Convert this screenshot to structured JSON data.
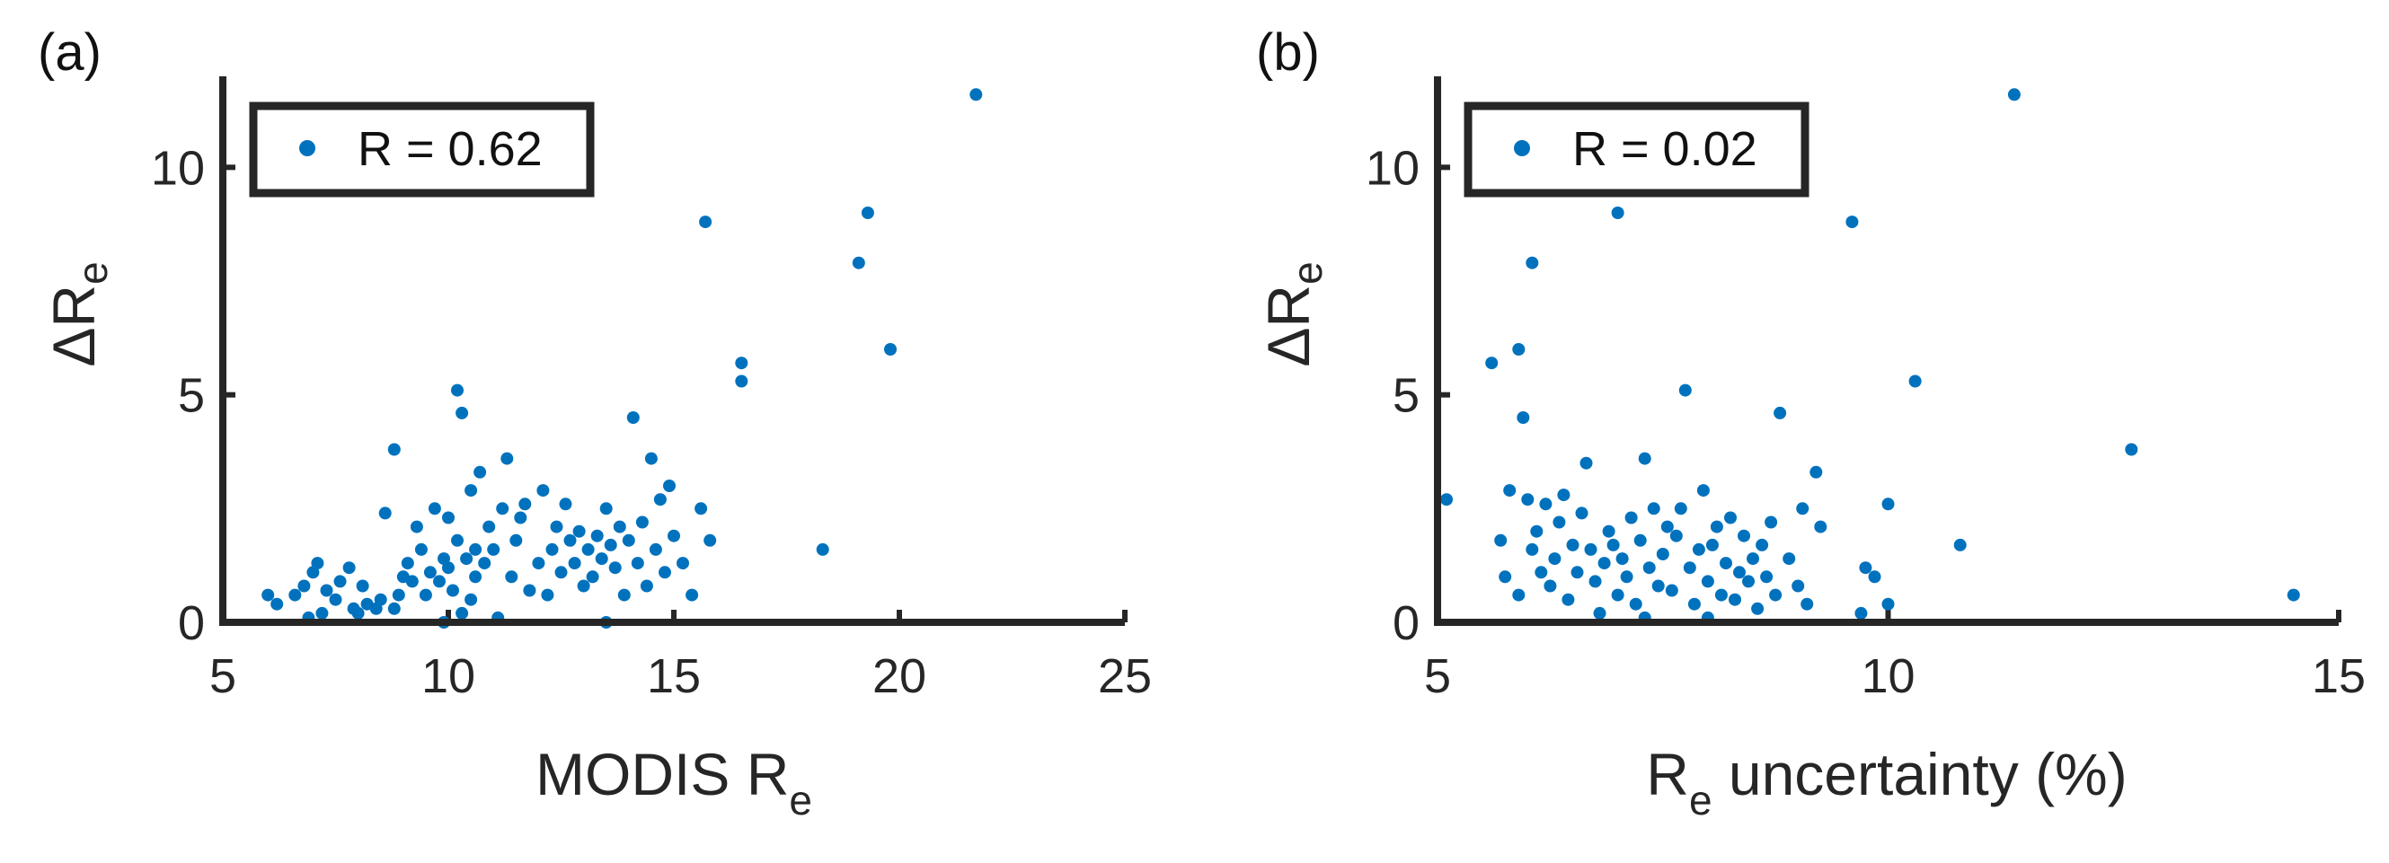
{
  "chart_data": [
    {
      "type": "scatter",
      "panel_label": "(a)",
      "color": "#0072BD",
      "ylabel_main": "ΔR",
      "ylabel_sub": "e",
      "xlabel_main": "MODIS R",
      "xlabel_sub": "e",
      "xlabel_suffix": "",
      "xlim": [
        5,
        25
      ],
      "ylim": [
        0,
        12
      ],
      "xticks": [
        "5",
        "10",
        "15",
        "20",
        "25"
      ],
      "yticks": [
        "0",
        "5",
        "10"
      ],
      "legend": "R = 0.62",
      "legend_position": "top-left",
      "grid": false,
      "points": [
        [
          6.0,
          0.6
        ],
        [
          6.2,
          0.4
        ],
        [
          6.6,
          0.6
        ],
        [
          6.8,
          0.8
        ],
        [
          6.9,
          0.1
        ],
        [
          7.0,
          1.1
        ],
        [
          7.1,
          1.3
        ],
        [
          7.2,
          0.2
        ],
        [
          7.3,
          0.7
        ],
        [
          7.5,
          0.5
        ],
        [
          7.6,
          0.9
        ],
        [
          7.8,
          1.2
        ],
        [
          7.9,
          0.3
        ],
        [
          8.0,
          0.2
        ],
        [
          8.1,
          0.8
        ],
        [
          8.2,
          0.4
        ],
        [
          8.4,
          0.3
        ],
        [
          8.5,
          0.5
        ],
        [
          8.6,
          2.4
        ],
        [
          8.8,
          0.3
        ],
        [
          8.8,
          3.8
        ],
        [
          8.9,
          0.6
        ],
        [
          9.0,
          1.0
        ],
        [
          9.1,
          1.3
        ],
        [
          9.2,
          0.9
        ],
        [
          9.3,
          2.1
        ],
        [
          9.4,
          1.6
        ],
        [
          9.5,
          0.6
        ],
        [
          9.6,
          1.1
        ],
        [
          9.7,
          2.5
        ],
        [
          9.8,
          0.9
        ],
        [
          9.9,
          1.4
        ],
        [
          9.9,
          0.0
        ],
        [
          10.0,
          1.2
        ],
        [
          10.0,
          2.3
        ],
        [
          10.1,
          0.7
        ],
        [
          10.2,
          1.8
        ],
        [
          10.2,
          5.1
        ],
        [
          10.3,
          4.6
        ],
        [
          10.3,
          0.2
        ],
        [
          10.4,
          1.4
        ],
        [
          10.5,
          2.9
        ],
        [
          10.5,
          0.5
        ],
        [
          10.6,
          1.6
        ],
        [
          10.6,
          1.0
        ],
        [
          10.7,
          3.3
        ],
        [
          10.8,
          1.3
        ],
        [
          10.9,
          2.1
        ],
        [
          11.0,
          1.6
        ],
        [
          11.1,
          0.1
        ],
        [
          11.2,
          2.5
        ],
        [
          11.3,
          3.6
        ],
        [
          11.4,
          1.0
        ],
        [
          11.5,
          1.8
        ],
        [
          11.6,
          2.3
        ],
        [
          11.7,
          2.6
        ],
        [
          11.8,
          0.7
        ],
        [
          12.0,
          1.3
        ],
        [
          12.1,
          2.9
        ],
        [
          12.2,
          0.6
        ],
        [
          12.3,
          1.6
        ],
        [
          12.4,
          2.1
        ],
        [
          12.5,
          1.1
        ],
        [
          12.6,
          2.6
        ],
        [
          12.7,
          1.8
        ],
        [
          12.8,
          1.3
        ],
        [
          12.9,
          2.0
        ],
        [
          13.0,
          0.8
        ],
        [
          13.1,
          1.6
        ],
        [
          13.2,
          1.0
        ],
        [
          13.3,
          1.9
        ],
        [
          13.4,
          1.4
        ],
        [
          13.5,
          2.5
        ],
        [
          13.5,
          0.0
        ],
        [
          13.6,
          1.7
        ],
        [
          13.7,
          1.2
        ],
        [
          13.8,
          2.1
        ],
        [
          13.9,
          0.6
        ],
        [
          14.0,
          1.8
        ],
        [
          14.1,
          4.5
        ],
        [
          14.2,
          1.3
        ],
        [
          14.3,
          2.2
        ],
        [
          14.4,
          0.8
        ],
        [
          14.5,
          3.6
        ],
        [
          14.6,
          1.6
        ],
        [
          14.7,
          2.7
        ],
        [
          14.8,
          1.1
        ],
        [
          14.9,
          3.0
        ],
        [
          15.0,
          1.9
        ],
        [
          15.2,
          1.3
        ],
        [
          15.4,
          0.6
        ],
        [
          15.6,
          2.5
        ],
        [
          15.7,
          8.8
        ],
        [
          15.8,
          1.8
        ],
        [
          16.5,
          5.7
        ],
        [
          16.5,
          5.3
        ],
        [
          18.3,
          1.6
        ],
        [
          19.1,
          7.9
        ],
        [
          19.3,
          9.0
        ],
        [
          19.8,
          6.0
        ],
        [
          21.7,
          11.6
        ]
      ]
    },
    {
      "type": "scatter",
      "panel_label": "(b)",
      "color": "#0072BD",
      "ylabel_main": "ΔR",
      "ylabel_sub": "e",
      "xlabel_main": "R",
      "xlabel_sub": "e",
      "xlabel_suffix": " uncertainty (%)",
      "xlim": [
        5,
        15
      ],
      "ylim": [
        0,
        12
      ],
      "xticks": [
        "5",
        "10",
        "15"
      ],
      "yticks": [
        "0",
        "5",
        "10"
      ],
      "legend": "R = 0.02",
      "legend_position": "top-left",
      "grid": false,
      "points": [
        [
          5.1,
          2.7
        ],
        [
          5.6,
          5.7
        ],
        [
          5.7,
          1.8
        ],
        [
          5.75,
          1.0
        ],
        [
          5.8,
          2.9
        ],
        [
          5.9,
          6.0
        ],
        [
          5.9,
          0.6
        ],
        [
          5.95,
          4.5
        ],
        [
          6.0,
          2.7
        ],
        [
          6.05,
          7.9
        ],
        [
          6.05,
          1.6
        ],
        [
          6.1,
          2.0
        ],
        [
          6.15,
          1.1
        ],
        [
          6.2,
          2.6
        ],
        [
          6.25,
          0.8
        ],
        [
          6.3,
          1.4
        ],
        [
          6.35,
          2.2
        ],
        [
          6.4,
          2.8
        ],
        [
          6.45,
          0.5
        ],
        [
          6.5,
          1.7
        ],
        [
          6.55,
          1.1
        ],
        [
          6.6,
          2.4
        ],
        [
          6.65,
          3.5
        ],
        [
          6.7,
          1.6
        ],
        [
          6.75,
          0.9
        ],
        [
          6.8,
          0.2
        ],
        [
          6.85,
          1.3
        ],
        [
          6.9,
          2.0
        ],
        [
          6.95,
          1.7
        ],
        [
          7.0,
          0.6
        ],
        [
          7.0,
          9.0
        ],
        [
          7.05,
          1.4
        ],
        [
          7.1,
          1.0
        ],
        [
          7.15,
          2.3
        ],
        [
          7.2,
          0.4
        ],
        [
          7.25,
          1.8
        ],
        [
          7.3,
          3.6
        ],
        [
          7.3,
          0.1
        ],
        [
          7.35,
          1.2
        ],
        [
          7.4,
          2.5
        ],
        [
          7.45,
          0.8
        ],
        [
          7.5,
          1.5
        ],
        [
          7.55,
          2.1
        ],
        [
          7.6,
          0.7
        ],
        [
          7.65,
          1.9
        ],
        [
          7.7,
          2.5
        ],
        [
          7.75,
          5.1
        ],
        [
          7.8,
          1.2
        ],
        [
          7.85,
          0.4
        ],
        [
          7.9,
          1.6
        ],
        [
          7.95,
          2.9
        ],
        [
          8.0,
          0.9
        ],
        [
          8.0,
          0.1
        ],
        [
          8.05,
          1.7
        ],
        [
          8.1,
          2.1
        ],
        [
          8.15,
          0.6
        ],
        [
          8.2,
          1.3
        ],
        [
          8.25,
          2.3
        ],
        [
          8.3,
          0.5
        ],
        [
          8.35,
          1.1
        ],
        [
          8.4,
          1.9
        ],
        [
          8.45,
          0.9
        ],
        [
          8.5,
          1.4
        ],
        [
          8.55,
          0.3
        ],
        [
          8.6,
          1.7
        ],
        [
          8.65,
          1.0
        ],
        [
          8.7,
          2.2
        ],
        [
          8.75,
          0.6
        ],
        [
          8.8,
          4.6
        ],
        [
          8.9,
          1.4
        ],
        [
          9.0,
          0.8
        ],
        [
          9.05,
          2.5
        ],
        [
          9.1,
          0.4
        ],
        [
          9.2,
          3.3
        ],
        [
          9.25,
          2.1
        ],
        [
          9.6,
          8.8
        ],
        [
          9.7,
          0.2
        ],
        [
          9.75,
          1.2
        ],
        [
          9.85,
          1.0
        ],
        [
          10.0,
          2.6
        ],
        [
          10.0,
          0.4
        ],
        [
          10.3,
          5.3
        ],
        [
          10.8,
          1.7
        ],
        [
          11.4,
          11.6
        ],
        [
          12.7,
          3.8
        ],
        [
          14.5,
          0.6
        ]
      ]
    }
  ]
}
